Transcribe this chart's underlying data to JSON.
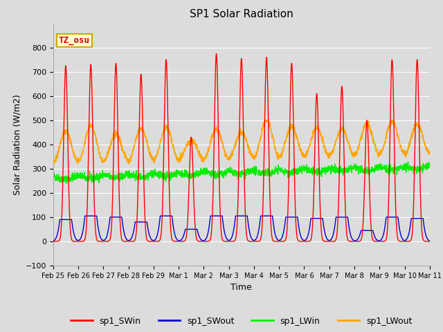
{
  "title": "SP1 Solar Radiation",
  "xlabel": "Time",
  "ylabel": "Solar Radiation (W/m2)",
  "ylim": [
    -100,
    900
  ],
  "yticks": [
    -100,
    0,
    100,
    200,
    300,
    400,
    500,
    600,
    700,
    800
  ],
  "plot_bg_color": "#dcdcdc",
  "fig_bg_color": "#dcdcdc",
  "grid_color": "#ffffff",
  "colors": {
    "SWin": "#ff0000",
    "SWout": "#0000cc",
    "LWin": "#00ee00",
    "LWout": "#ffa500"
  },
  "annotation_text": "TZ_osu",
  "annotation_bg": "#ffffcc",
  "annotation_border": "#ccaa00",
  "xtick_labels": [
    "Feb 25",
    "Feb 26",
    "Feb 27",
    "Feb 28",
    "Feb 29",
    "Mar 1",
    "Mar 2",
    "Mar 3",
    "Mar 4",
    "Mar 5",
    "Mar 6",
    "Mar 7",
    "Mar 8",
    "Mar 9",
    "Mar 10",
    "Mar 11"
  ],
  "legend_entries": [
    "sp1_SWin",
    "sp1_SWout",
    "sp1_LWin",
    "sp1_LWout"
  ],
  "sw_in_peaks": [
    725,
    730,
    735,
    690,
    750,
    430,
    775,
    755,
    760,
    735,
    610,
    640,
    500,
    750,
    750
  ],
  "sw_out_peaks": [
    90,
    105,
    100,
    80,
    105,
    50,
    105,
    105,
    105,
    100,
    95,
    100,
    45,
    100,
    95
  ]
}
